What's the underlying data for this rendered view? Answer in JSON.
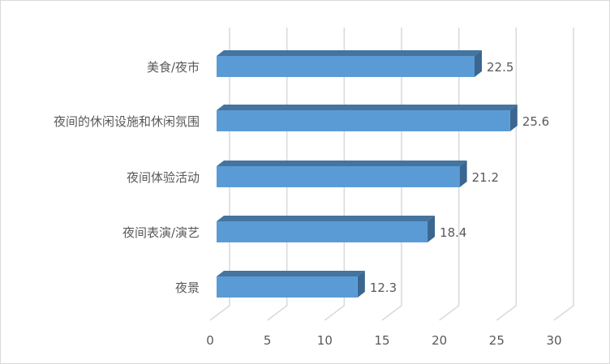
{
  "chart_data": {
    "type": "bar",
    "orientation": "horizontal",
    "style": "3d",
    "title": "",
    "xlabel": "",
    "ylabel": "",
    "categories": [
      "美食/夜市",
      "夜间的休闲设施和休闲氛围",
      "夜间体验活动",
      "夜间表演/演艺",
      "夜景"
    ],
    "values": [
      22.5,
      25.6,
      21.2,
      18.4,
      12.3
    ],
    "xlim": [
      0,
      30
    ],
    "xticks": [
      0,
      5,
      10,
      15,
      20,
      25,
      30
    ],
    "grid": true,
    "legend": "none",
    "data_labels": true,
    "colors": {
      "front": "#5b9bd5",
      "top": "#44749f",
      "side": "#3a6690",
      "grid": "#d9d9d9",
      "text": "#595959"
    }
  }
}
